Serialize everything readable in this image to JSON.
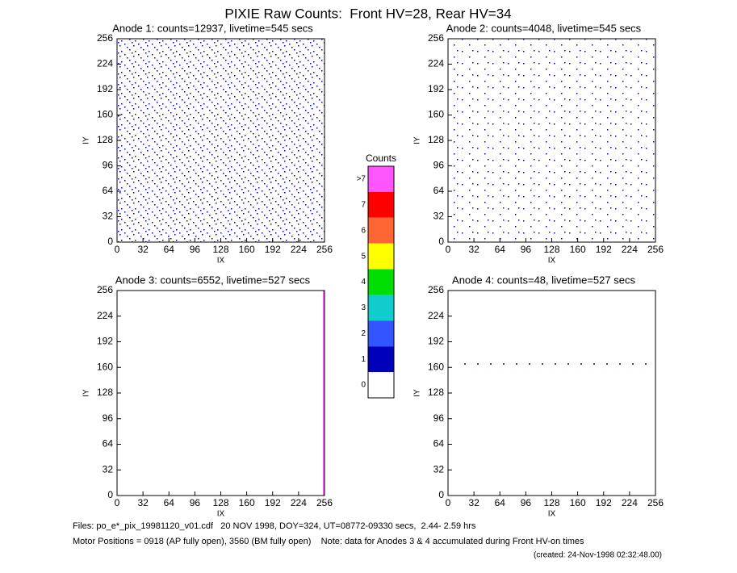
{
  "title": "PIXIE Raw Counts:  Front HV=28, Rear HV=34",
  "chart_data": [
    {
      "type": "heatmap",
      "title": "Anode 1: counts=12937, livetime=545 secs",
      "xlabel": "IX",
      "ylabel": "IY",
      "xlim": [
        0,
        256
      ],
      "ylim": [
        0,
        256
      ],
      "xticks": [
        0,
        32,
        64,
        96,
        128,
        160,
        192,
        224,
        256
      ],
      "yticks": [
        0,
        32,
        64,
        96,
        128,
        160,
        192,
        224,
        256
      ]
    },
    {
      "type": "heatmap",
      "title": "Anode 2: counts=4048, livetime=545 secs",
      "xlabel": "IX",
      "ylabel": "IY",
      "xlim": [
        0,
        256
      ],
      "ylim": [
        0,
        256
      ],
      "xticks": [
        0,
        32,
        64,
        96,
        128,
        160,
        192,
        224,
        256
      ],
      "yticks": [
        0,
        32,
        64,
        96,
        128,
        160,
        192,
        224,
        256
      ]
    },
    {
      "type": "heatmap",
      "title": "Anode 3: counts=6552, livetime=527 secs",
      "xlabel": "IX",
      "ylabel": "IY",
      "xlim": [
        0,
        256
      ],
      "ylim": [
        0,
        256
      ],
      "xticks": [
        0,
        32,
        64,
        96,
        128,
        160,
        192,
        224,
        256
      ],
      "yticks": [
        0,
        32,
        64,
        96,
        128,
        160,
        192,
        224,
        256
      ]
    },
    {
      "type": "heatmap",
      "title": "Anode 4: counts=48, livetime=527 secs",
      "xlabel": "IX",
      "ylabel": "IY",
      "xlim": [
        0,
        256
      ],
      "ylim": [
        0,
        256
      ],
      "xticks": [
        0,
        32,
        64,
        96,
        128,
        160,
        192,
        224,
        256
      ],
      "yticks": [
        0,
        32,
        64,
        96,
        128,
        160,
        192,
        224,
        256
      ]
    }
  ],
  "colorbar": {
    "title": "Counts",
    "labels": [
      ">7",
      7,
      6,
      5,
      4,
      3,
      2,
      1,
      0
    ],
    "colors": [
      "#ff55ff",
      "#ff0000",
      "#ff6633",
      "#ffff00",
      "#00dd00",
      "#11cccc",
      "#3355ff",
      "#0000bb",
      "#ffffff"
    ]
  },
  "footer": [
    "Files: po_e*_pix_19981120_v01.cdf   20 NOV 1998, DOY=324, UT=08772-09330 secs,  2.44- 2.59 hrs",
    "Motor Positions = 0918 (AP fully open), 3560 (BM fully open)    Note: data for Anodes 3 & 4 accumulated during Front HV-on times",
    "(created: 24-Nov-1998 02:32:48.00)"
  ]
}
